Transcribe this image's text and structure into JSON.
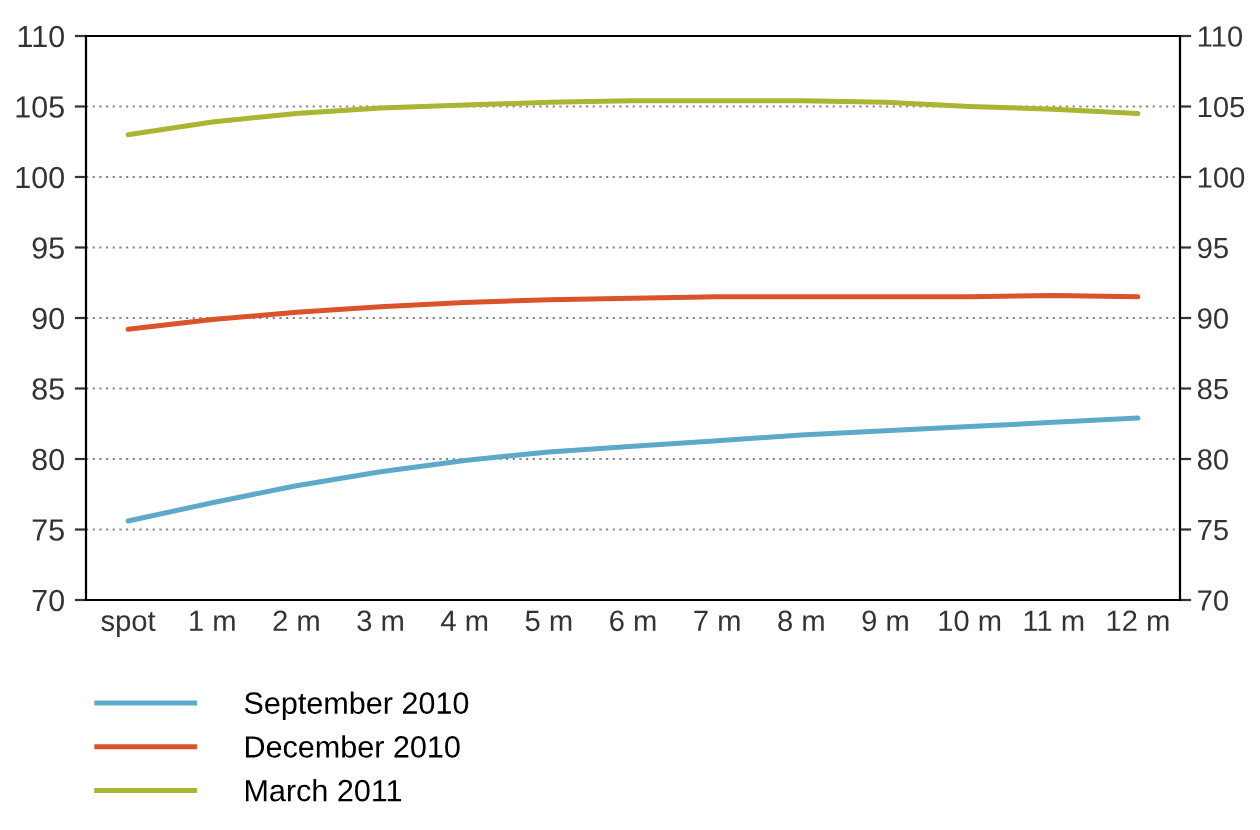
{
  "chart_data": {
    "type": "line",
    "categories": [
      "spot",
      "1 m",
      "2 m",
      "3 m",
      "4 m",
      "5 m",
      "6 m",
      "7 m",
      "8 m",
      "9 m",
      "10 m",
      "11 m",
      "12 m"
    ],
    "series": [
      {
        "name": "September 2010",
        "color": "#5ea9c9",
        "values": [
          75.6,
          76.9,
          78.1,
          79.1,
          79.9,
          80.5,
          80.9,
          81.3,
          81.7,
          82.0,
          82.3,
          82.6,
          82.9
        ]
      },
      {
        "name": "December 2010",
        "color": "#d9532b",
        "values": [
          89.2,
          89.9,
          90.4,
          90.8,
          91.1,
          91.3,
          91.4,
          91.5,
          91.5,
          91.5,
          91.5,
          91.6,
          91.5
        ]
      },
      {
        "name": "March 2011",
        "color": "#aab532",
        "values": [
          103.0,
          103.9,
          104.5,
          104.9,
          105.1,
          105.3,
          105.4,
          105.4,
          105.4,
          105.3,
          105.0,
          104.8,
          104.5
        ]
      }
    ],
    "ylim": [
      70,
      110
    ],
    "yticks": [
      70,
      75,
      80,
      85,
      90,
      95,
      100,
      105,
      110
    ],
    "y2lim": [
      70,
      110
    ],
    "y2ticks": [
      70,
      75,
      80,
      85,
      90,
      95,
      100,
      105,
      110
    ],
    "grid": "y",
    "legend": "bottom",
    "marker": "none",
    "line_style": "solid"
  }
}
